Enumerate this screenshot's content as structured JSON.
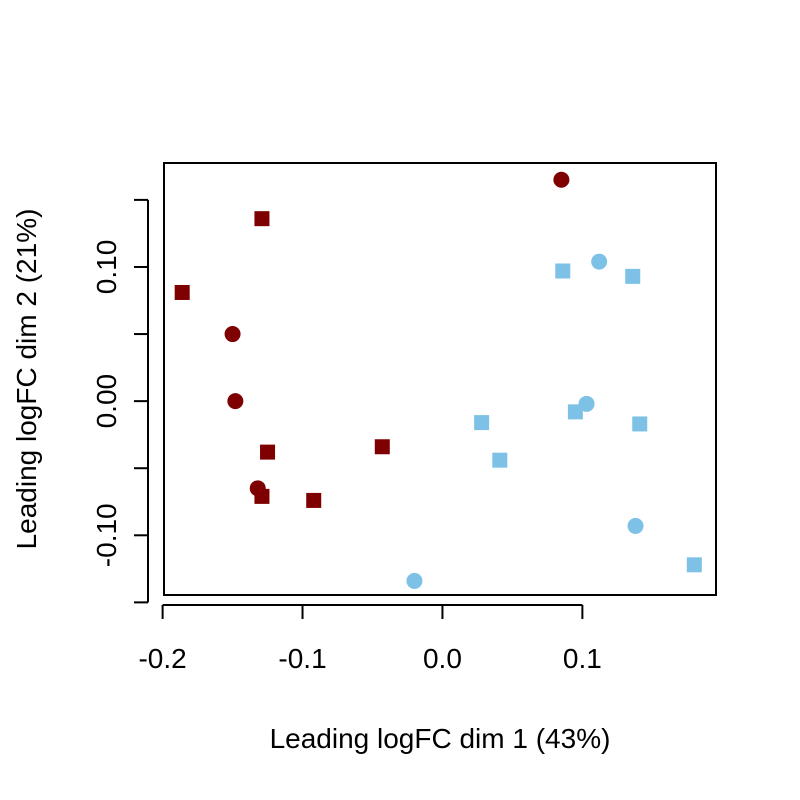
{
  "chart_data": {
    "type": "scatter",
    "title": "",
    "xlabel": "Leading logFC dim 1 (43%)",
    "ylabel": "Leading logFC dim 2 (21%)",
    "xlim": [
      -0.199,
      0.1955
    ],
    "ylim": [
      -0.1445,
      0.1775
    ],
    "x_ticks": [
      -0.2,
      -0.1,
      0.0,
      0.1
    ],
    "x_tick_labels": [
      "-0.2",
      "-0.1",
      "0.0",
      "0.1"
    ],
    "y_ticks": [
      -0.15,
      -0.1,
      -0.05,
      0.0,
      0.05,
      0.1,
      0.15
    ],
    "y_tick_labels": [
      "",
      "-0.10",
      "",
      "0.00",
      "",
      "0.10",
      ""
    ],
    "grid": false,
    "series": [
      {
        "name": "dark red circles",
        "color": "#7f0000",
        "marker": "circle",
        "points": [
          {
            "x": 0.085,
            "y": 0.165
          },
          {
            "x": -0.15,
            "y": 0.05
          },
          {
            "x": -0.148,
            "y": 0.0
          },
          {
            "x": -0.132,
            "y": -0.065
          }
        ]
      },
      {
        "name": "dark red squares",
        "color": "#7f0000",
        "marker": "square",
        "points": [
          {
            "x": -0.129,
            "y": 0.136
          },
          {
            "x": -0.186,
            "y": 0.081
          },
          {
            "x": -0.125,
            "y": -0.038
          },
          {
            "x": -0.043,
            "y": -0.034
          },
          {
            "x": -0.129,
            "y": -0.071
          },
          {
            "x": -0.092,
            "y": -0.074
          }
        ]
      },
      {
        "name": "light blue circles",
        "color": "#7dc2e6",
        "marker": "circle",
        "points": [
          {
            "x": 0.112,
            "y": 0.104
          },
          {
            "x": 0.103,
            "y": -0.002
          },
          {
            "x": 0.138,
            "y": -0.093
          },
          {
            "x": -0.02,
            "y": -0.134
          }
        ]
      },
      {
        "name": "light blue squares",
        "color": "#7dc2e6",
        "marker": "square",
        "points": [
          {
            "x": 0.086,
            "y": 0.097
          },
          {
            "x": 0.136,
            "y": 0.093
          },
          {
            "x": 0.095,
            "y": -0.008
          },
          {
            "x": 0.028,
            "y": -0.016
          },
          {
            "x": 0.141,
            "y": -0.017
          },
          {
            "x": 0.041,
            "y": -0.044
          },
          {
            "x": 0.18,
            "y": -0.122
          }
        ]
      }
    ]
  }
}
